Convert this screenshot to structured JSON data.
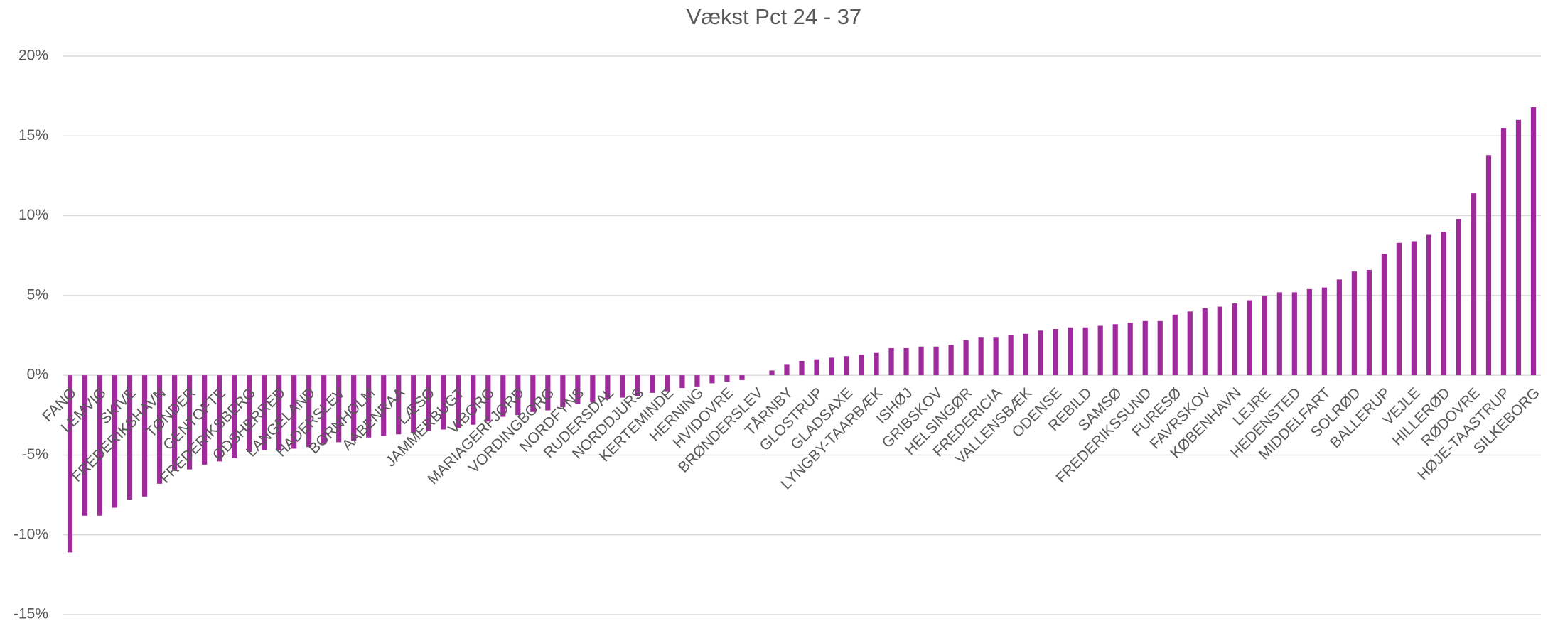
{
  "chart_data": {
    "type": "bar",
    "title": "Vækst Pct 24 - 37",
    "categories": [
      "FANØ",
      null,
      "LEMVIG",
      null,
      "SKIVE",
      null,
      "FREDERIKSHAVN",
      null,
      "TØNDER",
      null,
      "GENTOFTE",
      null,
      "FREDERIKSBERG",
      null,
      "ODSHERRED",
      null,
      "LANGELAND",
      null,
      "HADERSLEV",
      null,
      "BORNHOLM",
      null,
      "AABENRAA",
      null,
      "LÆSØ",
      null,
      "JAMMERBUGT",
      null,
      "VIBORG",
      null,
      "MARIAGERFJORD",
      null,
      "VORDINGBORG",
      null,
      "NORDFYNS",
      null,
      "RUDERSDAL",
      null,
      "NORDDJURS",
      null,
      "KERTEMINDE",
      null,
      "HERNING",
      null,
      "HVIDOVRE",
      null,
      "BRØNDERSLEV",
      null,
      "TÅRNBY",
      null,
      "GLOSTRUP",
      null,
      "GLADSAXE",
      null,
      "LYNGBY-TAARBÆK",
      null,
      "ISHØJ",
      null,
      "GRIBSKOV",
      null,
      "HELSINGØR",
      null,
      "FREDERICIA",
      null,
      "VALLENSBÆK",
      null,
      "ODENSE",
      null,
      "REBILD",
      null,
      "SAMSØ",
      null,
      "FREDERIKSSUND",
      null,
      "FURESØ",
      null,
      "FAVRSKOV",
      null,
      "KØBENHAVN",
      null,
      "LEJRE",
      null,
      "HEDENSTED",
      null,
      "MIDDELFART",
      null,
      "SOLRØD",
      null,
      "BALLERUP",
      null,
      "VEJLE",
      null,
      "HILLERØD",
      null,
      "RØDOVRE",
      null,
      "HØJE-TAASTRUP",
      null,
      "SILKEBORG"
    ],
    "values": [
      -11.1,
      -8.8,
      -8.8,
      -8.3,
      -7.8,
      -7.6,
      -6.8,
      -6.0,
      -5.9,
      -5.6,
      -5.4,
      -5.2,
      -4.8,
      -4.7,
      -4.7,
      -4.6,
      -4.5,
      -4.3,
      -4.2,
      -4.1,
      -3.9,
      -3.8,
      -3.7,
      -3.6,
      -3.5,
      -3.4,
      -3.3,
      -3.1,
      -2.9,
      -2.6,
      -2.5,
      -2.3,
      -2.2,
      -2.0,
      -1.8,
      -1.7,
      -1.5,
      -1.4,
      -1.3,
      -1.1,
      -1.0,
      -0.8,
      -0.7,
      -0.5,
      -0.4,
      -0.3,
      0,
      0.3,
      0.7,
      0.9,
      1.0,
      1.1,
      1.2,
      1.3,
      1.4,
      1.7,
      1.7,
      1.8,
      1.8,
      1.9,
      2.2,
      2.4,
      2.4,
      2.5,
      2.6,
      2.8,
      2.9,
      3.0,
      3.0,
      3.1,
      3.2,
      3.3,
      3.4,
      3.4,
      3.8,
      4.0,
      4.2,
      4.3,
      4.5,
      4.7,
      5.0,
      5.2,
      5.2,
      5.4,
      5.5,
      6.0,
      6.5,
      6.6,
      7.6,
      8.3,
      8.4,
      8.8,
      9.0,
      9.8,
      11.4,
      13.8,
      15.5,
      16.0,
      16.8
    ],
    "color": "#9e2a9c",
    "ylim": [
      -15,
      20
    ],
    "yticks": [
      {
        "value": -15,
        "label": "-15%"
      },
      {
        "value": -10,
        "label": "-10%"
      },
      {
        "value": -5,
        "label": "-5%"
      },
      {
        "value": 0,
        "label": "0%"
      },
      {
        "value": 5,
        "label": "5%"
      },
      {
        "value": 10,
        "label": "10%"
      },
      {
        "value": 15,
        "label": "15%"
      },
      {
        "value": 20,
        "label": "20%"
      }
    ],
    "grid": true
  }
}
